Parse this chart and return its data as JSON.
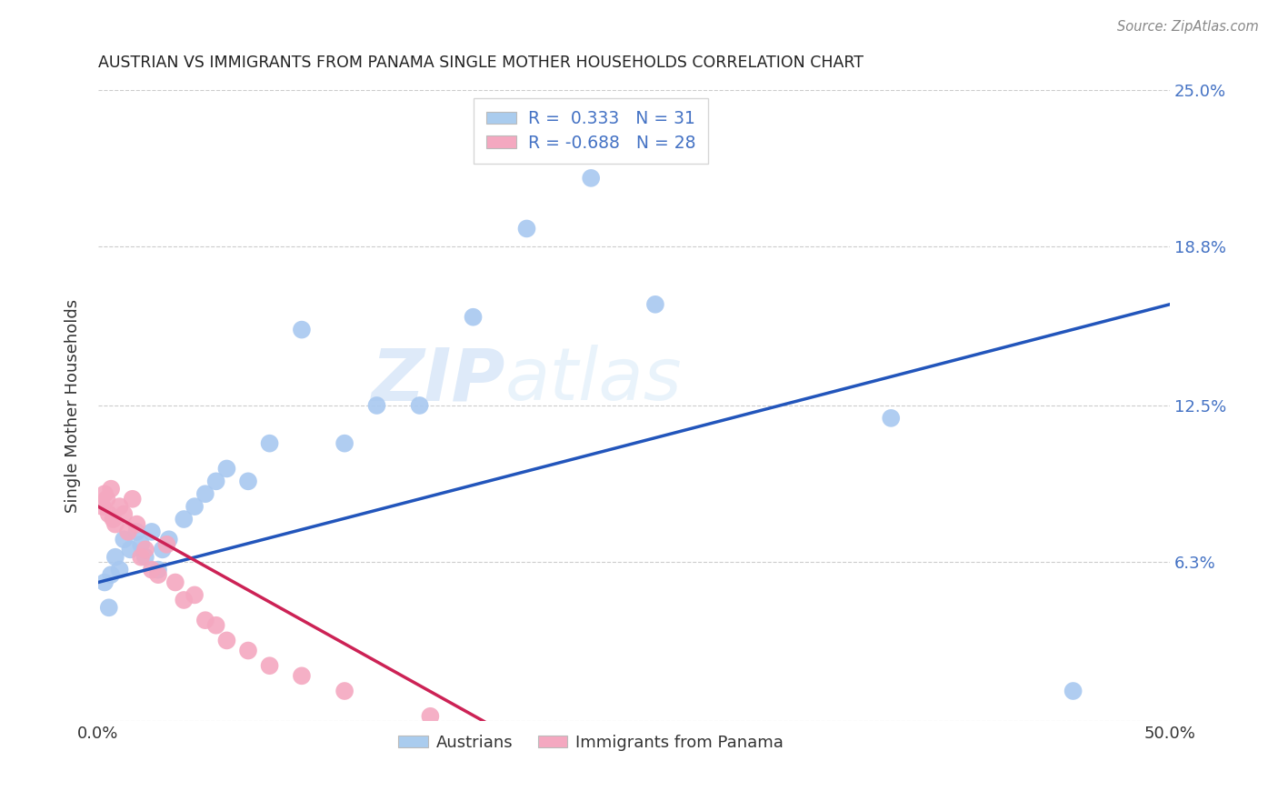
{
  "title": "AUSTRIAN VS IMMIGRANTS FROM PANAMA SINGLE MOTHER HOUSEHOLDS CORRELATION CHART",
  "source": "Source: ZipAtlas.com",
  "ylabel": "Single Mother Households",
  "xlim": [
    0,
    0.5
  ],
  "ylim": [
    0,
    0.25
  ],
  "yticks": [
    0.0,
    0.063,
    0.125,
    0.188,
    0.25
  ],
  "ytick_labels": [
    "",
    "6.3%",
    "12.5%",
    "18.8%",
    "25.0%"
  ],
  "xticks": [
    0.0,
    0.1,
    0.2,
    0.3,
    0.4,
    0.5
  ],
  "xtick_labels": [
    "0.0%",
    "",
    "",
    "",
    "",
    "50.0%"
  ],
  "blue_R": 0.333,
  "blue_N": 31,
  "pink_R": -0.688,
  "pink_N": 28,
  "background_color": "#ffffff",
  "blue_color": "#a8c8f0",
  "pink_color": "#f4a8c0",
  "blue_line_color": "#2255bb",
  "pink_line_color": "#cc2255",
  "blue_x": [
    0.003,
    0.005,
    0.006,
    0.008,
    0.01,
    0.012,
    0.015,
    0.018,
    0.02,
    0.022,
    0.025,
    0.028,
    0.03,
    0.033,
    0.04,
    0.045,
    0.05,
    0.055,
    0.06,
    0.07,
    0.08,
    0.095,
    0.115,
    0.13,
    0.15,
    0.175,
    0.2,
    0.23,
    0.26,
    0.37,
    0.455
  ],
  "blue_y": [
    0.055,
    0.045,
    0.058,
    0.065,
    0.06,
    0.072,
    0.068,
    0.075,
    0.07,
    0.065,
    0.075,
    0.06,
    0.068,
    0.072,
    0.08,
    0.085,
    0.09,
    0.095,
    0.1,
    0.095,
    0.11,
    0.155,
    0.11,
    0.125,
    0.125,
    0.16,
    0.195,
    0.215,
    0.165,
    0.12,
    0.012
  ],
  "pink_x": [
    0.002,
    0.003,
    0.004,
    0.005,
    0.006,
    0.007,
    0.008,
    0.01,
    0.012,
    0.014,
    0.016,
    0.018,
    0.02,
    0.022,
    0.025,
    0.028,
    0.032,
    0.036,
    0.04,
    0.045,
    0.05,
    0.055,
    0.06,
    0.07,
    0.08,
    0.095,
    0.115,
    0.155
  ],
  "pink_y": [
    0.085,
    0.09,
    0.088,
    0.082,
    0.092,
    0.08,
    0.078,
    0.085,
    0.082,
    0.075,
    0.088,
    0.078,
    0.065,
    0.068,
    0.06,
    0.058,
    0.07,
    0.055,
    0.048,
    0.05,
    0.04,
    0.038,
    0.032,
    0.028,
    0.022,
    0.018,
    0.012,
    0.002
  ],
  "blue_line_x": [
    0.0,
    0.5
  ],
  "blue_line_y": [
    0.055,
    0.165
  ],
  "pink_line_x": [
    0.0,
    0.18
  ],
  "pink_line_y": [
    0.085,
    0.0
  ],
  "watermark_zip": "ZIP",
  "watermark_atlas": "atlas",
  "title_color": "#222222",
  "axis_label_color": "#333333",
  "right_tick_color": "#4472c4",
  "legend_box_blue": "#aaccee",
  "legend_box_pink": "#f4a8c0",
  "grid_color": "#cccccc",
  "legend_text_color": "#444444",
  "legend_value_color": "#4472c4"
}
